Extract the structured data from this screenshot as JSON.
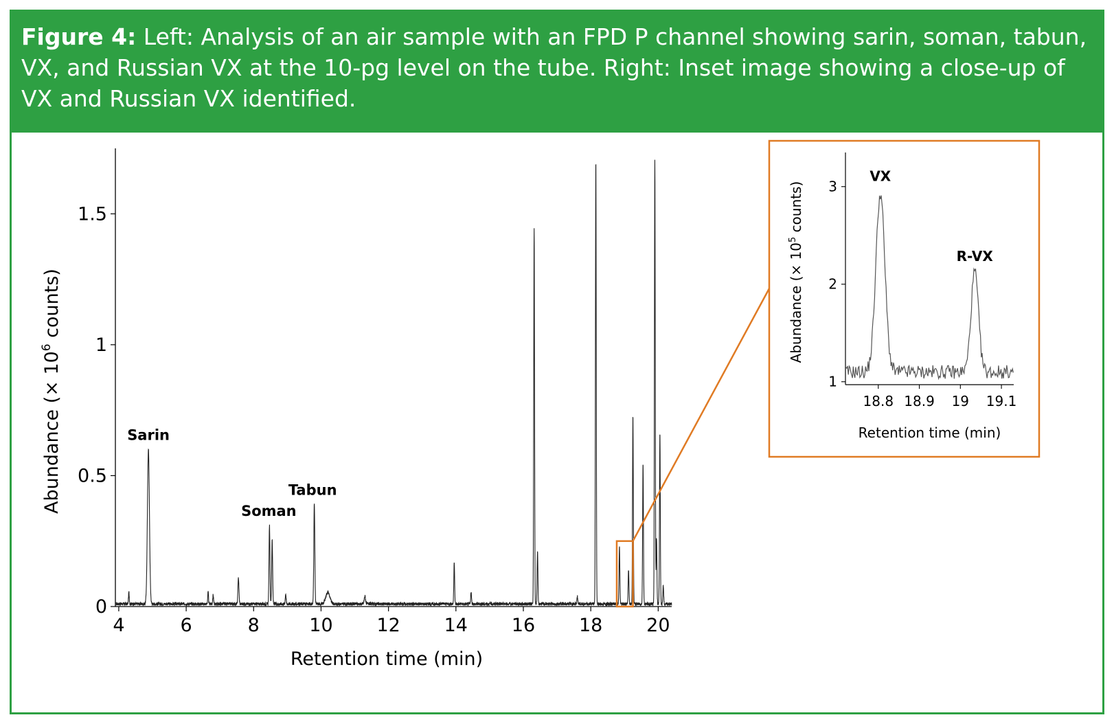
{
  "caption": {
    "label": "Figure 4:",
    "text": "Left: Analysis of an air sample with an FPD P channel showing sarin, soman, tabun, VX, and Russian VX at the 10-pg level on the tube. Right: Inset image showing a close-up of VX and Russian VX identified."
  },
  "colors": {
    "header_bg": "#2ea043",
    "highlight": "#e07b24",
    "trace": "#222222"
  },
  "chart_data": [
    {
      "type": "line",
      "xlabel": "Retention time (min)",
      "ylabel_parts": [
        "Abundance (× 10",
        "6",
        " counts)"
      ],
      "xlim": [
        3.9,
        20.4
      ],
      "ylim": [
        0,
        1.75
      ],
      "xticks": [
        4,
        6,
        8,
        10,
        12,
        14,
        16,
        18,
        20
      ],
      "yticks": [
        0,
        0.5,
        1,
        1.5
      ],
      "ytick_labels": [
        "0",
        "0.5",
        "1",
        "1.5"
      ],
      "baseline": 0.01,
      "peaks": [
        {
          "rt": 4.3,
          "height": 0.045,
          "width": 0.012
        },
        {
          "rt": 4.88,
          "height": 0.59,
          "width": 0.03
        },
        {
          "rt": 6.65,
          "height": 0.045,
          "width": 0.012
        },
        {
          "rt": 6.8,
          "height": 0.035,
          "width": 0.012
        },
        {
          "rt": 7.55,
          "height": 0.1,
          "width": 0.015
        },
        {
          "rt": 8.47,
          "height": 0.3,
          "width": 0.014
        },
        {
          "rt": 8.55,
          "height": 0.245,
          "width": 0.014
        },
        {
          "rt": 8.95,
          "height": 0.04,
          "width": 0.012
        },
        {
          "rt": 9.8,
          "height": 0.385,
          "width": 0.015
        },
        {
          "rt": 10.2,
          "height": 0.045,
          "width": 0.06
        },
        {
          "rt": 11.3,
          "height": 0.03,
          "width": 0.02
        },
        {
          "rt": 13.95,
          "height": 0.16,
          "width": 0.012
        },
        {
          "rt": 14.45,
          "height": 0.045,
          "width": 0.012
        },
        {
          "rt": 16.32,
          "height": 1.44,
          "width": 0.012
        },
        {
          "rt": 16.42,
          "height": 0.2,
          "width": 0.012
        },
        {
          "rt": 17.6,
          "height": 0.03,
          "width": 0.012
        },
        {
          "rt": 18.15,
          "height": 1.7,
          "width": 0.012
        },
        {
          "rt": 18.85,
          "height": 0.22,
          "width": 0.012
        },
        {
          "rt": 19.12,
          "height": 0.13,
          "width": 0.012
        },
        {
          "rt": 19.25,
          "height": 0.72,
          "width": 0.012
        },
        {
          "rt": 19.55,
          "height": 0.54,
          "width": 0.012
        },
        {
          "rt": 19.9,
          "height": 1.7,
          "width": 0.012
        },
        {
          "rt": 19.95,
          "height": 0.25,
          "width": 0.012
        },
        {
          "rt": 20.05,
          "height": 0.65,
          "width": 0.012
        },
        {
          "rt": 20.15,
          "height": 0.07,
          "width": 0.012
        }
      ],
      "annotations": [
        {
          "text": "Sarin",
          "x": 4.88,
          "y": 0.62
        },
        {
          "text": "Soman",
          "x": 8.45,
          "y": 0.33
        },
        {
          "text": "Tabun",
          "x": 9.75,
          "y": 0.41
        }
      ],
      "highlight_box": {
        "x": [
          18.77,
          19.25
        ],
        "y": [
          0,
          0.25
        ]
      }
    },
    {
      "type": "line",
      "xlabel": "Retention time (min)",
      "ylabel_parts": [
        "Abundance (× 10",
        "5",
        " counts)"
      ],
      "xlim": [
        18.72,
        19.13
      ],
      "ylim": [
        0.97,
        3.35
      ],
      "xticks": [
        18.8,
        18.9,
        19,
        19.1
      ],
      "xtick_labels": [
        "18.8",
        "18.9",
        "19",
        "19.1"
      ],
      "yticks": [
        1,
        2,
        3
      ],
      "ytick_labels": [
        "1",
        "2",
        "3"
      ],
      "baseline": 1.1,
      "peaks": [
        {
          "name": "VX",
          "rt": 18.805,
          "height": 1.83,
          "width": 0.011
        },
        {
          "name": "R-VX",
          "rt": 19.035,
          "height": 1.03,
          "width": 0.009
        }
      ],
      "annotations": [
        {
          "text": "VX",
          "x": 18.805,
          "y": 3.1
        },
        {
          "text": "R-VX",
          "x": 19.035,
          "y": 2.28
        }
      ]
    }
  ]
}
